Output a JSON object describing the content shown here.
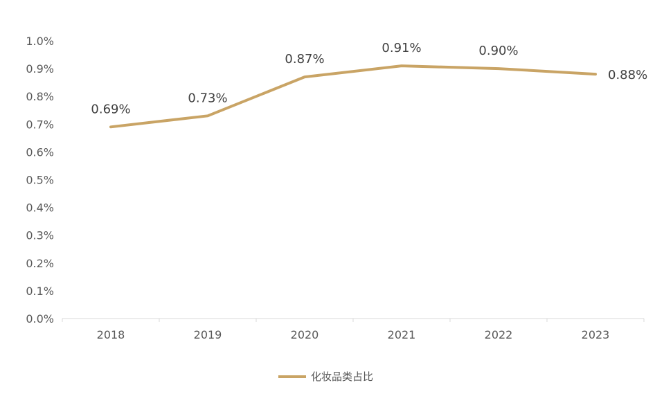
{
  "chart_data": {
    "type": "line",
    "x": [
      "2018",
      "2019",
      "2020",
      "2021",
      "2022",
      "2023"
    ],
    "series": [
      {
        "name": "化妆品类占比",
        "values": [
          0.69,
          0.73,
          0.87,
          0.91,
          0.9,
          0.88
        ],
        "labels": [
          "0.69%",
          "0.73%",
          "0.87%",
          "0.91%",
          "0.90%",
          "0.88%"
        ],
        "color": "#C9A465"
      }
    ],
    "y_ticks": [
      "0.0%",
      "0.1%",
      "0.2%",
      "0.3%",
      "0.4%",
      "0.5%",
      "0.6%",
      "0.7%",
      "0.8%",
      "0.9%",
      "1.0%"
    ],
    "ylim": [
      0,
      1.0
    ],
    "ytick_step": 0.1,
    "grid": false,
    "legend_position": "bottom-center",
    "axis_color": "#D9D9D9",
    "title": "",
    "xlabel": "",
    "ylabel": ""
  }
}
